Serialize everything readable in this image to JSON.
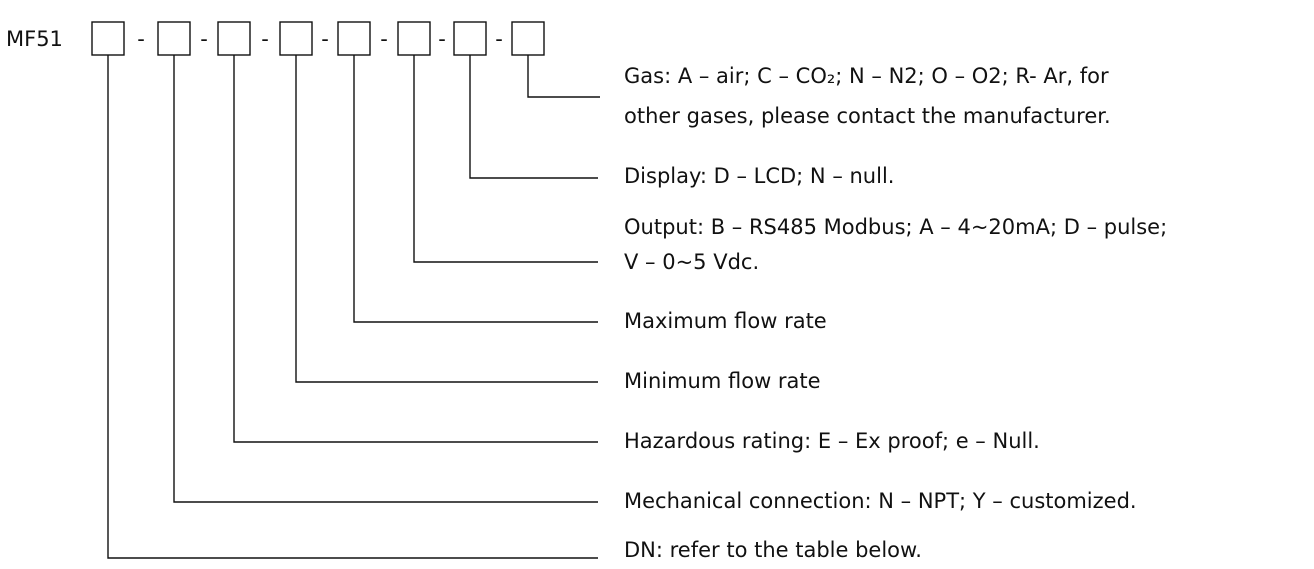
{
  "prefix": "MF51",
  "separator": "-",
  "fields": [
    {
      "lines": [
        "Gas: A – air; C – CO₂; N – N2; O – O2; R- Ar, for",
        "other gases, please contact the manufacturer."
      ]
    },
    {
      "lines": [
        "Display: D – LCD; N – null."
      ]
    },
    {
      "lines": [
        "Output: B – RS485 Modbus; A – 4~20mA; D – pulse;",
        "V – 0~5 Vdc."
      ]
    },
    {
      "lines": [
        "Maximum flow rate"
      ]
    },
    {
      "lines": [
        "Minimum flow rate"
      ]
    },
    {
      "lines": [
        "Hazardous rating: E – Ex proof; e –  Null."
      ]
    },
    {
      "lines": [
        "Mechanical connection: N – NPT; Y – customized."
      ]
    },
    {
      "lines": [
        "DN: refer to the table below."
      ]
    }
  ]
}
